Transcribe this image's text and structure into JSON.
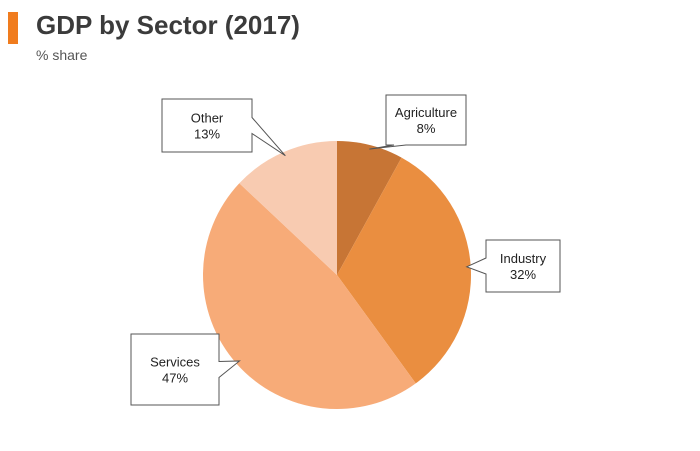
{
  "header": {
    "title": "GDP by Sector (2017)",
    "subtitle": "% share",
    "accent_color": "#f07c1e"
  },
  "chart_data": {
    "type": "pie",
    "title": "GDP by Sector (2017)",
    "subtitle": "% share",
    "unit": "%",
    "slices": [
      {
        "label": "Agriculture",
        "value": 8,
        "display": "8%",
        "color": "#c77535"
      },
      {
        "label": "Industry",
        "value": 32,
        "display": "32%",
        "color": "#ea8e40"
      },
      {
        "label": "Services",
        "value": 47,
        "display": "47%",
        "color": "#f7ab78"
      },
      {
        "label": "Other",
        "value": 13,
        "display": "13%",
        "color": "#f8cbb1"
      }
    ],
    "legend": "none"
  }
}
